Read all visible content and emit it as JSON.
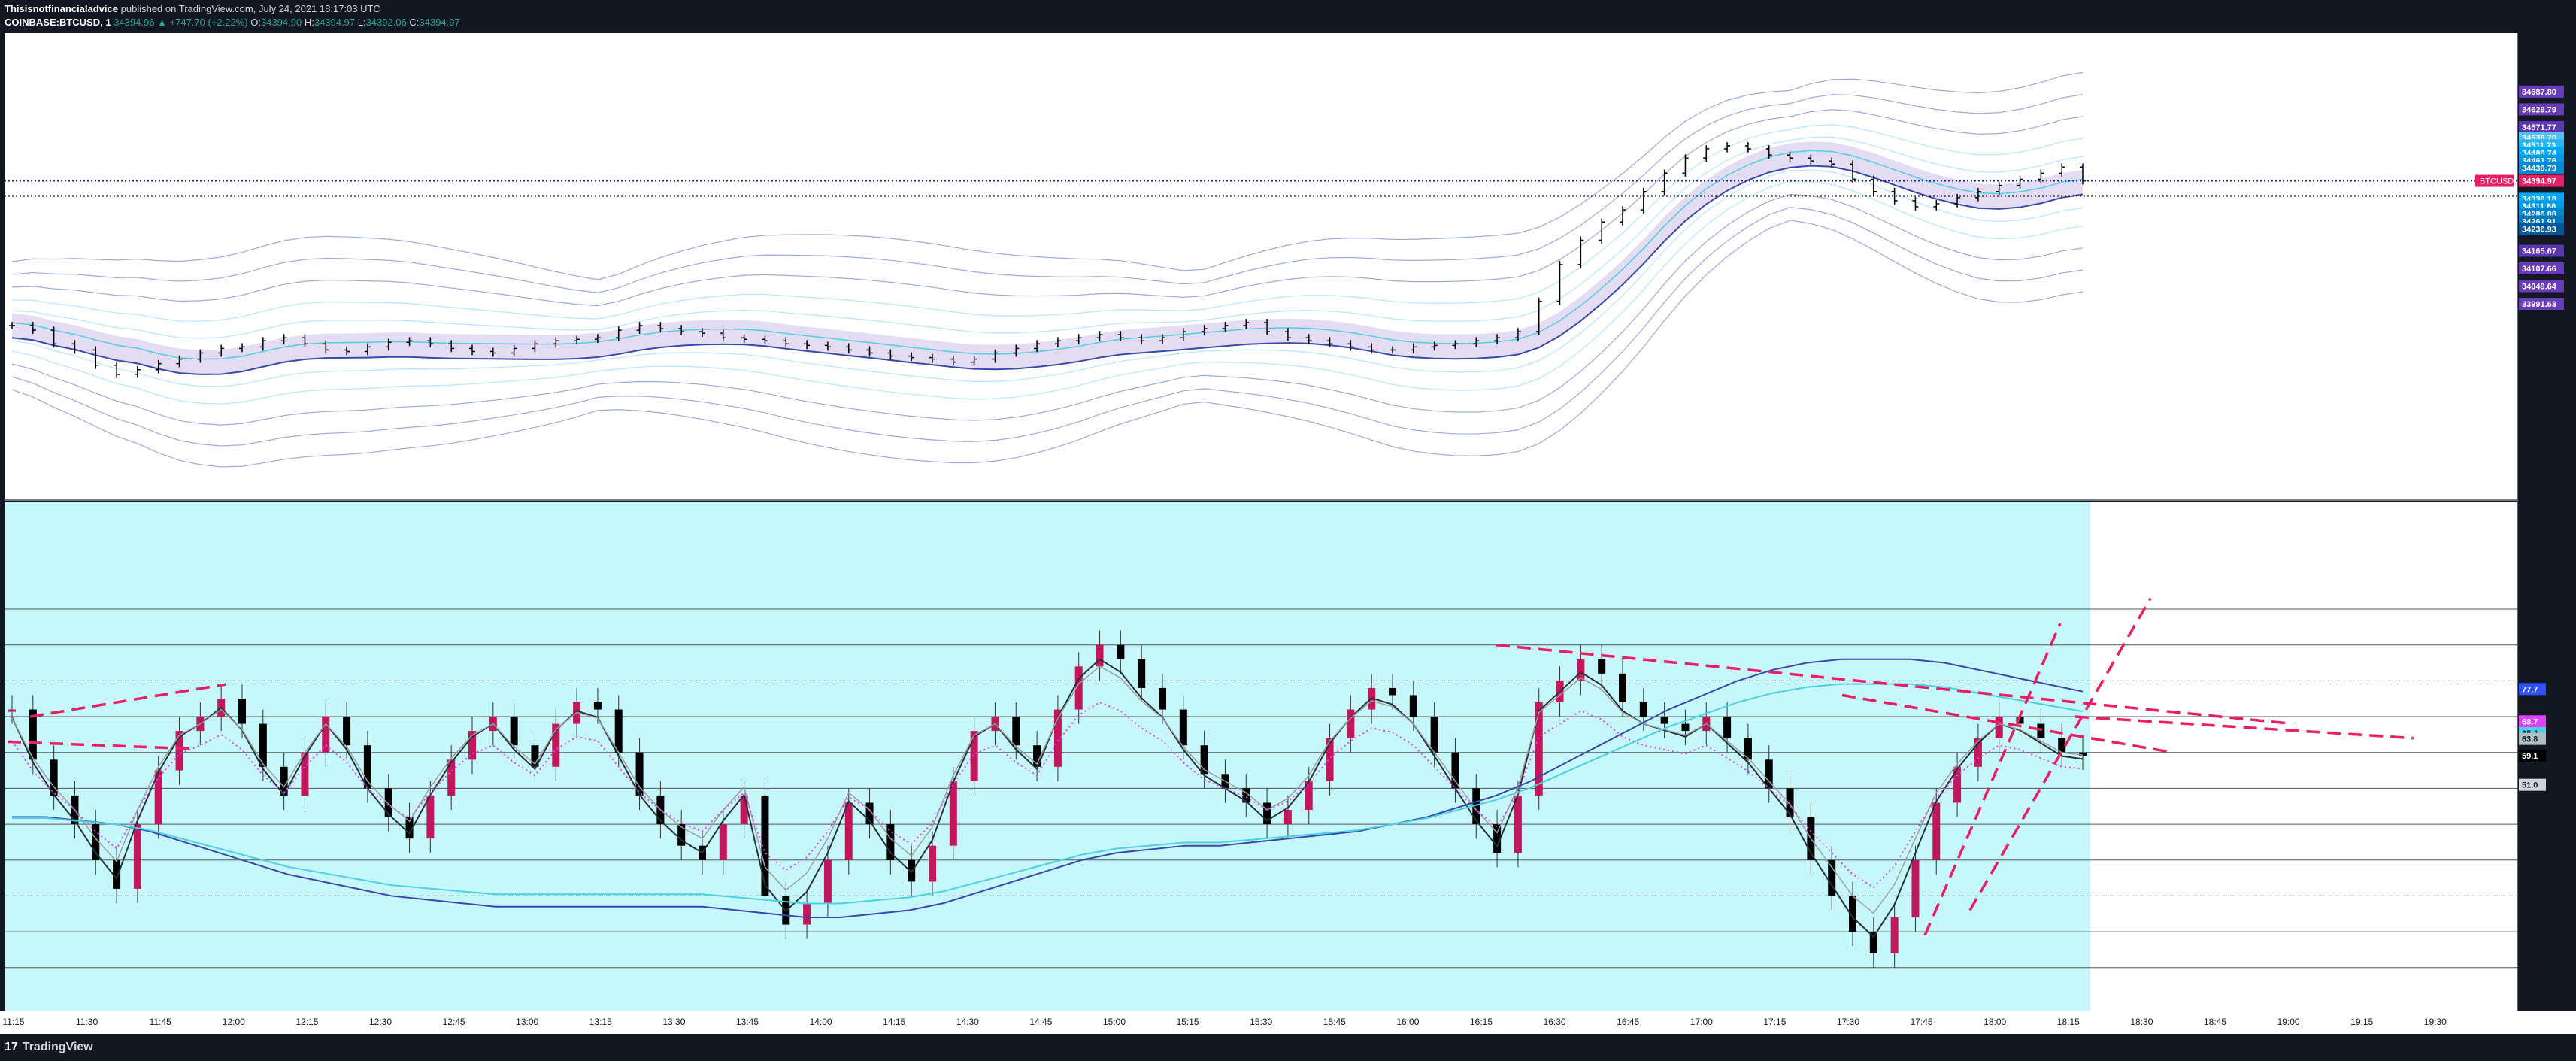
{
  "header": {
    "publisher": "Thisisnotfinancialadvice",
    "published_text": "published on TradingView.com, July 24, 2021 18:17:03 UTC",
    "symbol_line": "COINBASE:BTCUSD, 1",
    "price": "34394.96",
    "change": "▲ +747.70 (+2.22%)",
    "o_label": "O:",
    "o_value": "34394.90",
    "h_label": "H:",
    "h_value": "34394.97",
    "l_label": "L:",
    "l_value": "34392.06",
    "c_label": "C:",
    "c_value": "34394.97"
  },
  "footer": {
    "brand": "TradingView",
    "logo_glyph": "17"
  },
  "colors": {
    "background": "#131722",
    "plot_top": "#ffffff",
    "plot_bottom": "#c5f7fb",
    "up": "#c2185b",
    "down": "#000000",
    "band": "#9fa8da",
    "band_fill": "#d1c4e9",
    "ma_blue": "#3949ab",
    "ma_cyan": "#4dd0e1",
    "trend": "#e91e63",
    "price_line": "#1a237e"
  },
  "chart_data": [
    {
      "type": "candlestick",
      "panel": "price",
      "symbol": "COINBASE:BTCUSD",
      "ylim": [
        33350,
        34880
      ],
      "y_ticks": [
        "34800.00",
        "34720.00",
        "34640.00",
        "34560.00",
        "34480.00",
        "34400.00",
        "34320.00",
        "34240.00",
        "34160.00",
        "34080.00",
        "34040.00",
        "33960.00",
        "33880.00",
        "33805.00",
        "33730.00",
        "33650.00",
        "33570.00",
        "33490.00",
        "33410.00"
      ],
      "current_price": {
        "value": 34394.97,
        "symbol_label": "BTCUSD",
        "label": "34394.97"
      },
      "band_labels": [
        {
          "value": 34687.8,
          "label": "34687.80",
          "color": "#673ab7"
        },
        {
          "value": 34629.79,
          "label": "34629.79",
          "color": "#673ab7"
        },
        {
          "value": 34571.77,
          "label": "34571.77",
          "color": "#5e35b1"
        },
        {
          "value": 34536.7,
          "label": "34536.70",
          "color": "#4fc3f7"
        },
        {
          "value": 34511.73,
          "label": "34511.73",
          "color": "#29b6f6"
        },
        {
          "value": 34486.74,
          "label": "34486.74",
          "color": "#03a9f4"
        },
        {
          "value": 34461.76,
          "label": "34461.76",
          "color": "#039be5"
        },
        {
          "value": 34436.79,
          "label": "34436.79",
          "color": "#0288d1"
        },
        {
          "value": 34336.18,
          "label": "34336.18",
          "color": "#03a9f4"
        },
        {
          "value": 34311.86,
          "label": "34311.86",
          "color": "#039be5"
        },
        {
          "value": 34286.88,
          "label": "34286.88",
          "color": "#0288d1"
        },
        {
          "value": 34261.91,
          "label": "34261.91",
          "color": "#0277bd"
        },
        {
          "value": 34236.93,
          "label": "34236.93",
          "color": "#01579b"
        },
        {
          "value": 34165.67,
          "label": "34165.67",
          "color": "#5e35b1"
        },
        {
          "value": 34107.66,
          "label": "34107.66",
          "color": "#673ab7"
        },
        {
          "value": 34049.64,
          "label": "34049.64",
          "color": "#673ab7"
        },
        {
          "value": 33991.63,
          "label": "33991.63",
          "color": "#673ab7"
        }
      ],
      "series": [
        {
          "name": "BTCUSD",
          "values": [
            33920,
            33905,
            33860,
            33840,
            33790,
            33760,
            33775,
            33795,
            33810,
            33830,
            33845,
            33850,
            33870,
            33880,
            33860,
            33840,
            33835,
            33850,
            33865,
            33870,
            33860,
            33845,
            33835,
            33830,
            33845,
            33860,
            33870,
            33875,
            33880,
            33905,
            33920,
            33910,
            33900,
            33895,
            33880,
            33875,
            33870,
            33860,
            33855,
            33850,
            33840,
            33830,
            33820,
            33815,
            33810,
            33800,
            33810,
            33830,
            33845,
            33860,
            33870,
            33880,
            33890,
            33880,
            33870,
            33880,
            33900,
            33910,
            33920,
            33930,
            33900,
            33880,
            33870,
            33860,
            33850,
            33840,
            33840,
            33850,
            33855,
            33860,
            33870,
            33880,
            33900,
            34000,
            34120,
            34200,
            34260,
            34300,
            34360,
            34420,
            34470,
            34500,
            34510,
            34500,
            34480,
            34470,
            34460,
            34450,
            34400,
            34360,
            34330,
            34310,
            34320,
            34340,
            34360,
            34380,
            34400,
            34420,
            34440,
            34394.97
          ]
        }
      ]
    },
    {
      "type": "line",
      "panel": "oscillator",
      "ylim": [
        -12,
        130
      ],
      "y_ticks": [
        "120.0",
        "110.0",
        "100.0",
        "90.0",
        "80.0",
        "70.0",
        "60.0",
        "50.0",
        "40.0",
        "30.0",
        "20.0",
        "10.0",
        "0.0",
        "-10.0"
      ],
      "levels": [
        0,
        10,
        20,
        30,
        40,
        50,
        60,
        70,
        80,
        90,
        100
      ],
      "dashed_levels": [
        20,
        80
      ],
      "value_labels": [
        {
          "value": 77.7,
          "label": "77.7",
          "color": "#304ffe"
        },
        {
          "value": 68.7,
          "label": "68.7",
          "color": "#e040fb"
        },
        {
          "value": 65.4,
          "label": "65.4",
          "color": "#4dd0e1"
        },
        {
          "value": 63.8,
          "label": "63.8",
          "color": "#b0bec5"
        },
        {
          "value": 59.1,
          "label": "59.1",
          "color": "#000000"
        },
        {
          "value": 51.0,
          "label": "51.0",
          "color": "#d1d4dc"
        }
      ],
      "series": [
        {
          "name": "oscillator",
          "values": [
            72,
            58,
            48,
            40,
            30,
            22,
            40,
            55,
            66,
            70,
            75,
            68,
            56,
            48,
            60,
            70,
            62,
            50,
            42,
            36,
            48,
            58,
            66,
            70,
            62,
            56,
            68,
            74,
            72,
            60,
            48,
            40,
            34,
            30,
            40,
            48,
            20,
            12,
            18,
            30,
            46,
            40,
            30,
            24,
            34,
            52,
            66,
            70,
            62,
            56,
            72,
            84,
            90,
            86,
            78,
            72,
            62,
            54,
            50,
            46,
            40,
            44,
            52,
            64,
            72,
            78,
            76,
            70,
            60,
            50,
            40,
            32,
            48,
            74,
            80,
            86,
            82,
            74,
            70,
            68,
            66,
            70,
            64,
            58,
            50,
            42,
            30,
            20,
            10,
            4,
            14,
            30,
            46,
            56,
            64,
            70,
            68,
            64,
            60,
            59.1
          ]
        },
        {
          "name": "slow-ma",
          "values": [
            42,
            42,
            41,
            40,
            38,
            35,
            32,
            29,
            26,
            24,
            22,
            20,
            19,
            18,
            17,
            17,
            17,
            17,
            17,
            17,
            17,
            16,
            15,
            14,
            14,
            15,
            16,
            18,
            21,
            24,
            27,
            30,
            32,
            33,
            34,
            34,
            35,
            36,
            37,
            38,
            40,
            42,
            45,
            48,
            52,
            57,
            62,
            67,
            72,
            76,
            80,
            83,
            85,
            86,
            86,
            86,
            85,
            83,
            81,
            79,
            77
          ]
        }
      ]
    }
  ],
  "x_axis": {
    "ticks": [
      "11:15",
      "11:30",
      "11:45",
      "12:00",
      "12:15",
      "12:30",
      "12:45",
      "13:00",
      "13:15",
      "13:30",
      "13:45",
      "14:00",
      "14:15",
      "14:30",
      "14:45",
      "15:00",
      "15:15",
      "15:30",
      "15:45",
      "16:00",
      "16:15",
      "16:30",
      "16:45",
      "17:00",
      "17:15",
      "17:30",
      "17:45",
      "18:00",
      "18:15",
      "18:30",
      "18:45",
      "19:00",
      "19:15",
      "19:30"
    ]
  }
}
